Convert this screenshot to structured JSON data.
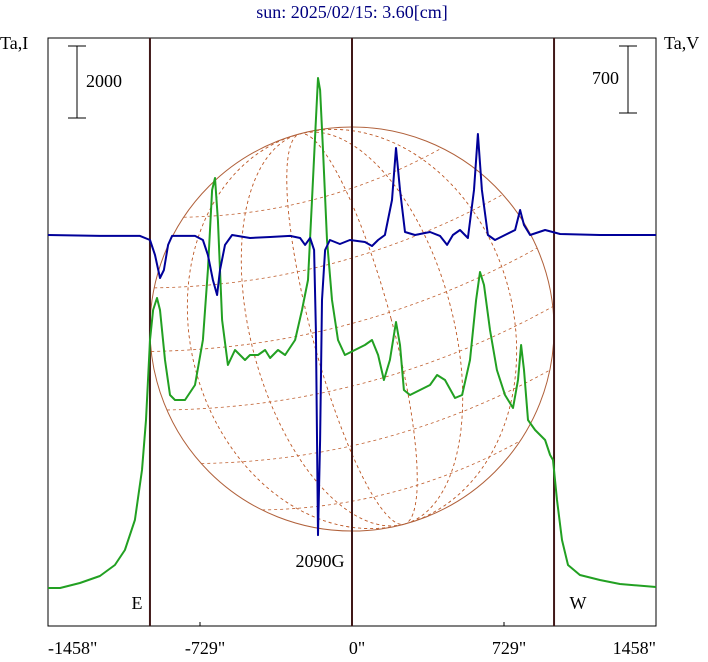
{
  "chart_data": {
    "type": "line",
    "title": "sun: 2025/02/15: 3.60[cm]",
    "y_label": "Ta,I",
    "y2_label": "Ta,V",
    "xlim": [
      -1458,
      1458
    ],
    "xticks": [
      {
        "value": -1458,
        "label": "-1458\""
      },
      {
        "value": -729,
        "label": "-729\""
      },
      {
        "value": 0,
        "label": "0\""
      },
      {
        "value": 729,
        "label": "729\""
      },
      {
        "value": 1458,
        "label": "1458\""
      }
    ],
    "ylim": [
      0,
      16333
    ],
    "y2lim": [
      -4085,
      2058
    ],
    "limb_x": [
      -969,
      969
    ],
    "i_scale": 2000,
    "v_scale": 700,
    "annotations": {
      "field": "2090G",
      "east": "E",
      "west": "W"
    },
    "series": [
      {
        "name": "I",
        "color": "#22a022",
        "x": [
          -1458,
          -1400,
          -1305,
          -1209,
          -1137,
          -1089,
          -1041,
          -1007,
          -988,
          -969,
          -954,
          -935,
          -921,
          -897,
          -873,
          -849,
          -801,
          -753,
          -715,
          -691,
          -671,
          -657,
          -643,
          -623,
          -595,
          -561,
          -537,
          -513,
          -489,
          -451,
          -417,
          -393,
          -355,
          -321,
          -273,
          -240,
          -211,
          -192,
          -173,
          -163,
          -153,
          -139,
          -120,
          -96,
          -67,
          -34,
          14,
          62,
          96,
          125,
          153,
          182,
          211,
          230,
          249,
          278,
          326,
          374,
          408,
          446,
          494,
          528,
          566,
          595,
          614,
          633,
          662,
          695,
          734,
          772,
          796,
          811,
          825,
          844,
          878,
          926,
          950,
          964,
          983,
          1007,
          1036,
          1093,
          1189,
          1285,
          1458
        ],
        "values": [
          1056,
          1056,
          1194,
          1389,
          1694,
          2111,
          2944,
          4333,
          5722,
          7944,
          8778,
          9111,
          8778,
          7389,
          6417,
          6278,
          6278,
          6694,
          7944,
          9889,
          12111,
          12444,
          11278,
          8500,
          7250,
          7667,
          7528,
          7389,
          7528,
          7528,
          7667,
          7444,
          7667,
          7528,
          7944,
          8778,
          9611,
          11833,
          14056,
          15222,
          14889,
          13222,
          10722,
          9056,
          7944,
          7528,
          7667,
          7806,
          7944,
          7528,
          6833,
          7389,
          8444,
          7806,
          6556,
          6417,
          6556,
          6694,
          6972,
          6833,
          6333,
          6417,
          7389,
          9056,
          9833,
          9472,
          8222,
          7111,
          6417,
          6056,
          6833,
          7806,
          7111,
          5722,
          5444,
          5167,
          4750,
          4611,
          3500,
          2389,
          1694,
          1417,
          1278,
          1167,
          1083
        ]
      },
      {
        "name": "V",
        "color": "#000099",
        "axis": "y2",
        "x": [
          -1458,
          -1209,
          -1017,
          -969,
          -945,
          -921,
          -902,
          -882,
          -863,
          -753,
          -715,
          -691,
          -667,
          -647,
          -633,
          -609,
          -575,
          -489,
          -393,
          -297,
          -249,
          -225,
          -201,
          -182,
          -173,
          -163,
          -153,
          -144,
          -129,
          -106,
          -58,
          -10,
          62,
          96,
          125,
          158,
          192,
          211,
          230,
          254,
          302,
          374,
          422,
          456,
          484,
          518,
          556,
          585,
          604,
          623,
          652,
          686,
          734,
          782,
          806,
          825,
          854,
          926,
          998,
          1189,
          1458
        ],
        "values": [
          0,
          -10,
          -10,
          -52,
          -209,
          -449,
          -366,
          -104,
          -10,
          -10,
          -52,
          -209,
          -470,
          -627,
          -366,
          -104,
          0,
          -31,
          -21,
          -10,
          -31,
          -104,
          -31,
          -157,
          -993,
          -3135,
          -2142,
          -679,
          -157,
          -52,
          -94,
          -52,
          -73,
          -115,
          -52,
          0,
          366,
          909,
          470,
          31,
          0,
          31,
          -10,
          -104,
          0,
          52,
          -31,
          470,
          1055,
          470,
          0,
          -52,
          0,
          52,
          261,
          104,
          0,
          52,
          10,
          0,
          0
        ]
      }
    ]
  }
}
